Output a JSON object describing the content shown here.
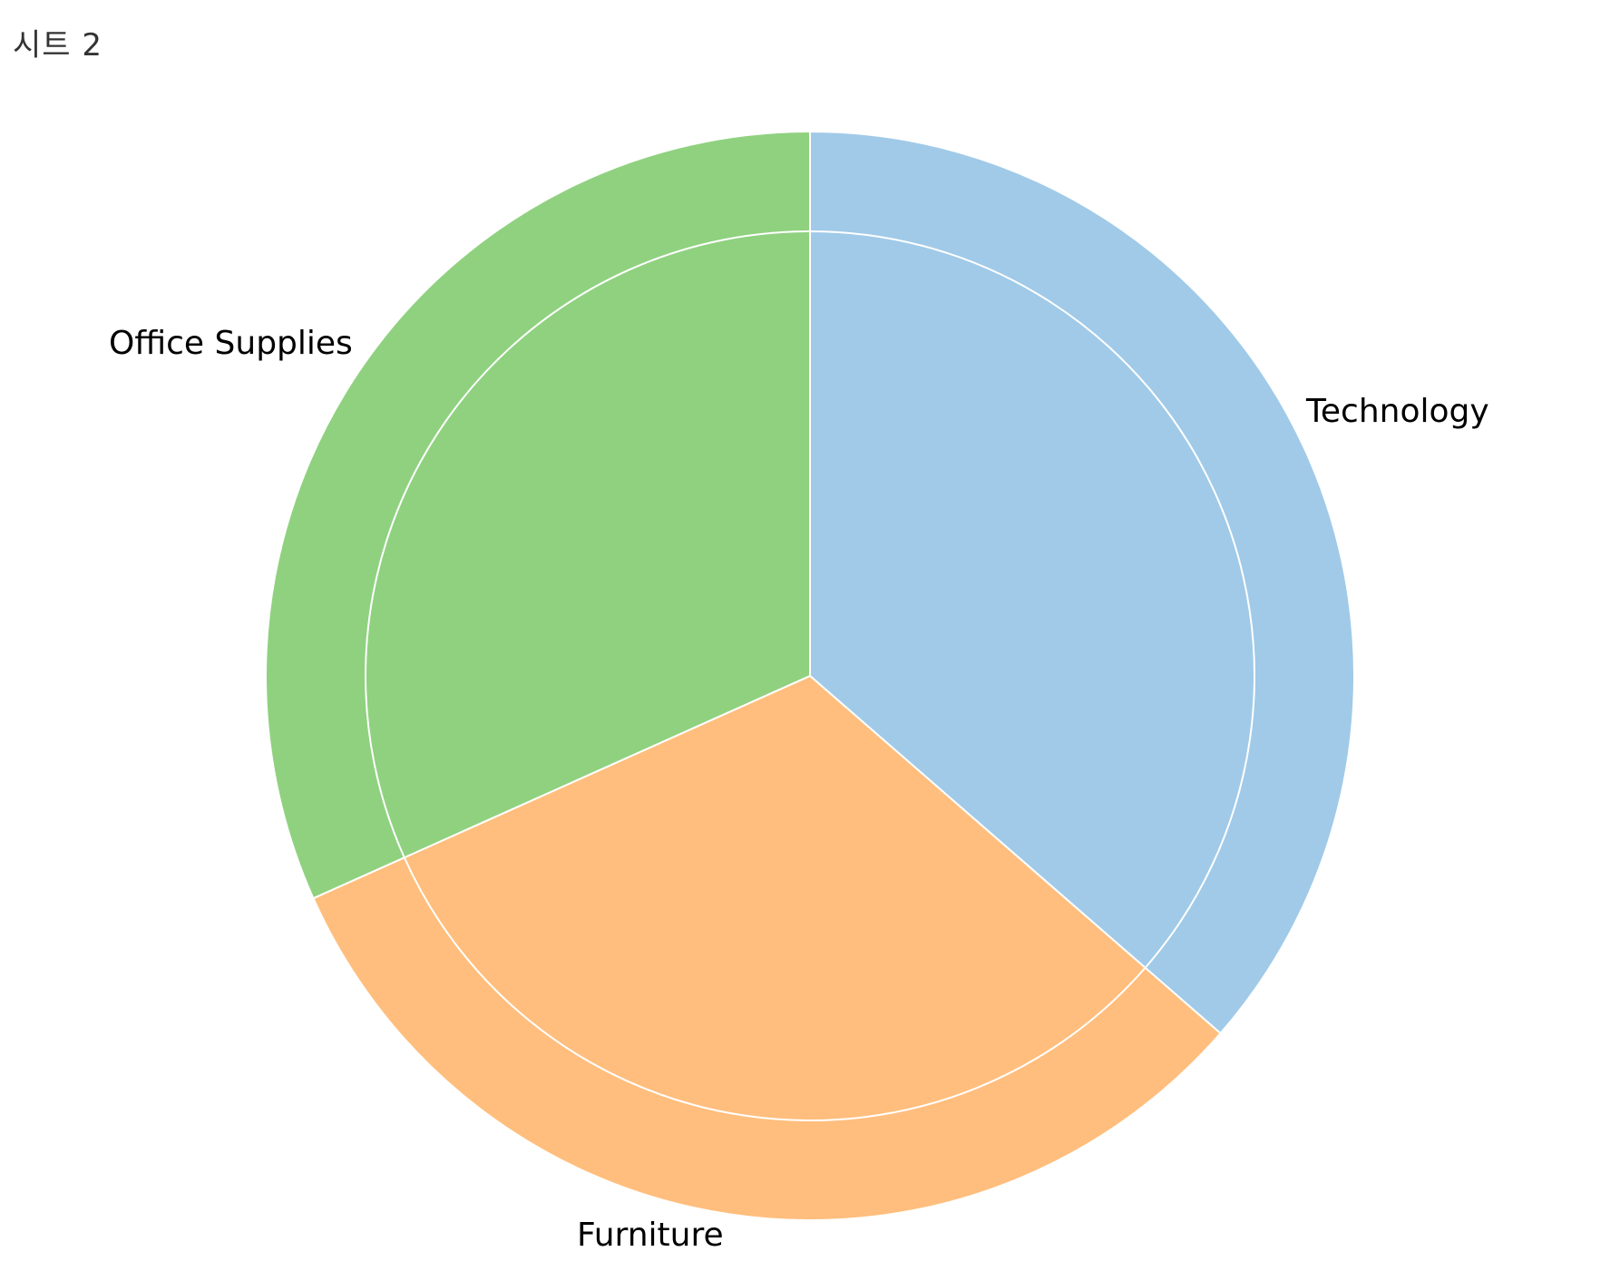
{
  "sheet": {
    "title": "시트 2"
  },
  "chart_data": {
    "type": "pie",
    "title": "시트 2",
    "categories": [
      "Technology",
      "Furniture",
      "Office Supplies"
    ],
    "series": [
      {
        "level": "outer",
        "values": [
          36.4,
          31.9,
          31.7
        ]
      },
      {
        "level": "inner",
        "values": [
          36.4,
          31.9,
          31.7
        ]
      }
    ],
    "colors": {
      "Technology": "#a0cae8",
      "Furniture": "#ffbe7d",
      "Office Supplies": "#8fd17f"
    },
    "start_angle_deg": 0,
    "direction": "clockwise",
    "legend": "none",
    "label_placement": "outside"
  }
}
